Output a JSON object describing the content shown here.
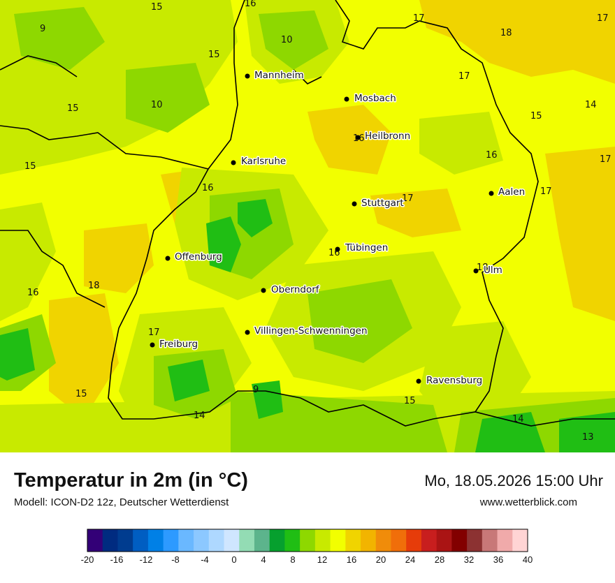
{
  "header": {
    "title": "Temperatur in 2m (in °C)",
    "model": "Modell: ICON-D2 12z, Deutscher Wetterdienst",
    "datetime": "Mo, 18.05.2026 15:00 Uhr",
    "site": "www.wetterblick.com"
  },
  "cities": [
    {
      "name": "Mannheim"
    },
    {
      "name": "Mosbach"
    },
    {
      "name": "Heilbronn"
    },
    {
      "name": "Karlsruhe"
    },
    {
      "name": "Stuttgart"
    },
    {
      "name": "Aalen"
    },
    {
      "name": "Tübingen"
    },
    {
      "name": "Offenburg"
    },
    {
      "name": "Ulm"
    },
    {
      "name": "Oberndorf"
    },
    {
      "name": "Villingen-Schwenningen"
    },
    {
      "name": "Freiburg"
    },
    {
      "name": "Ravensburg"
    }
  ],
  "isotherm_labels": [
    "15",
    "16",
    "17",
    "17",
    "9",
    "10",
    "18",
    "15",
    "17",
    "15",
    "10",
    "14",
    "15",
    "16",
    "17",
    "15",
    "16",
    "17",
    "17",
    "16",
    "16",
    "18",
    "16",
    "17",
    "15",
    "15",
    "14",
    "9",
    "14",
    "13",
    "18",
    "17"
  ],
  "legend": {
    "ticks": [
      "-20",
      "-16",
      "-12",
      "-8",
      "-4",
      "0",
      "4",
      "8",
      "12",
      "16",
      "20",
      "24",
      "28",
      "32",
      "36",
      "40"
    ],
    "colors": [
      "#330077",
      "#002b80",
      "#003c8f",
      "#005ec2",
      "#0080e6",
      "#2d9aff",
      "#6ab8ff",
      "#8cc8ff",
      "#aed8ff",
      "#cfe6ff",
      "#93dcb4",
      "#5cb48c",
      "#06a02e",
      "#20be14",
      "#8ed800",
      "#c8ea00",
      "#f2ff00",
      "#f0d400",
      "#f2b400",
      "#f08c0a",
      "#f06e0a",
      "#e63c0a",
      "#c81e1e",
      "#aa1414",
      "#820000",
      "#8c3232",
      "#c87878",
      "#f0aaaa",
      "#ffd4d4"
    ]
  }
}
